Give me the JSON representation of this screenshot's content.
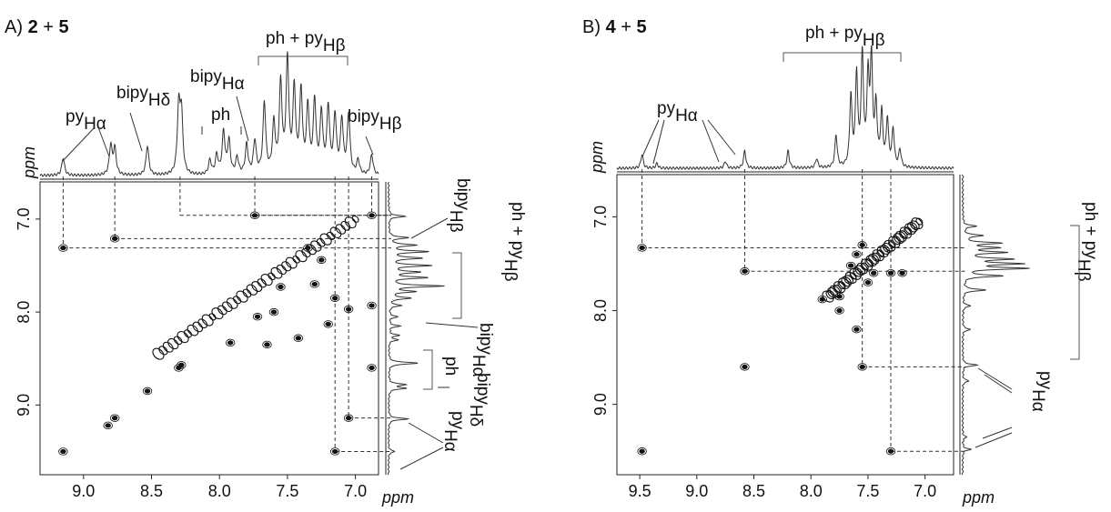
{
  "chart_data": [
    {
      "type": "2D NMR (COSY) contour plot",
      "panel_label": "A)",
      "title_parts": [
        "2",
        " + ",
        "5"
      ],
      "xlabel": "ppm",
      "ylabel": "ppm",
      "xlim": [
        9.32,
        6.83
      ],
      "ylim": [
        6.6,
        9.75
      ],
      "x_ticks": [
        "9.0",
        "8.5",
        "8.0",
        "7.5",
        "7.0"
      ],
      "x_tick_values": [
        9.0,
        8.5,
        8.0,
        7.5,
        7.0
      ],
      "y_ticks": [
        "7.0",
        "8.0",
        "9.0"
      ],
      "y_tick_values": [
        7.0,
        8.0,
        9.0
      ],
      "top_spectrum_peaks": [
        {
          "ppm": 9.15,
          "h": 0.15
        },
        {
          "ppm": 8.8,
          "h": 0.25
        },
        {
          "ppm": 8.77,
          "h": 0.22
        },
        {
          "ppm": 8.53,
          "h": 0.25
        },
        {
          "ppm": 8.3,
          "h": 0.55
        },
        {
          "ppm": 8.28,
          "h": 0.5
        },
        {
          "ppm": 8.07,
          "h": 0.12
        },
        {
          "ppm": 8.02,
          "h": 0.16
        },
        {
          "ppm": 7.97,
          "h": 0.36
        },
        {
          "ppm": 7.93,
          "h": 0.28
        },
        {
          "ppm": 7.87,
          "h": 0.14
        },
        {
          "ppm": 7.8,
          "h": 0.25
        },
        {
          "ppm": 7.74,
          "h": 0.28
        },
        {
          "ppm": 7.67,
          "h": 0.6
        },
        {
          "ppm": 7.6,
          "h": 0.42
        },
        {
          "ppm": 7.55,
          "h": 0.75
        },
        {
          "ppm": 7.5,
          "h": 0.95
        },
        {
          "ppm": 7.45,
          "h": 0.7
        },
        {
          "ppm": 7.4,
          "h": 0.68
        },
        {
          "ppm": 7.35,
          "h": 0.55
        },
        {
          "ppm": 7.3,
          "h": 0.6
        },
        {
          "ppm": 7.25,
          "h": 0.5
        },
        {
          "ppm": 7.2,
          "h": 0.55
        },
        {
          "ppm": 7.15,
          "h": 0.48
        },
        {
          "ppm": 7.1,
          "h": 0.45
        },
        {
          "ppm": 7.05,
          "h": 0.5
        },
        {
          "ppm": 6.98,
          "h": 0.12
        },
        {
          "ppm": 6.88,
          "h": 0.17
        }
      ],
      "side_spectrum_peaks": [
        {
          "ppm": 6.97,
          "h": 0.3
        },
        {
          "ppm": 7.2,
          "h": 0.35
        },
        {
          "ppm": 7.28,
          "h": 0.5
        },
        {
          "ppm": 7.35,
          "h": 0.7
        },
        {
          "ppm": 7.42,
          "h": 0.6
        },
        {
          "ppm": 7.5,
          "h": 0.75
        },
        {
          "ppm": 7.57,
          "h": 0.55
        },
        {
          "ppm": 7.63,
          "h": 0.68
        },
        {
          "ppm": 7.72,
          "h": 0.98
        },
        {
          "ppm": 7.78,
          "h": 0.45
        },
        {
          "ppm": 7.85,
          "h": 0.4
        },
        {
          "ppm": 7.93,
          "h": 0.22
        },
        {
          "ppm": 8.05,
          "h": 0.16
        },
        {
          "ppm": 8.15,
          "h": 0.2
        },
        {
          "ppm": 8.25,
          "h": 0.18
        },
        {
          "ppm": 8.3,
          "h": 0.16
        },
        {
          "ppm": 8.55,
          "h": 0.55
        },
        {
          "ppm": 8.78,
          "h": 0.3
        },
        {
          "ppm": 8.82,
          "h": 0.3
        },
        {
          "ppm": 9.15,
          "h": 0.35
        },
        {
          "ppm": 9.5,
          "h": 0.12
        }
      ],
      "cross_peaks": [
        {
          "x": 9.15,
          "y": 9.5
        },
        {
          "x": 8.82,
          "y": 9.22
        },
        {
          "x": 8.77,
          "y": 9.14
        },
        {
          "x": 8.53,
          "y": 8.85
        },
        {
          "x": 8.3,
          "y": 8.6
        },
        {
          "x": 8.28,
          "y": 8.57
        },
        {
          "x": 9.15,
          "y": 7.31
        },
        {
          "x": 8.77,
          "y": 7.21
        },
        {
          "x": 7.74,
          "y": 6.96
        },
        {
          "x": 7.35,
          "y": 7.31
        },
        {
          "x": 7.25,
          "y": 7.44
        },
        {
          "x": 7.55,
          "y": 7.73
        },
        {
          "x": 7.3,
          "y": 7.7
        },
        {
          "x": 7.15,
          "y": 7.85
        },
        {
          "x": 7.05,
          "y": 7.97
        },
        {
          "x": 6.88,
          "y": 7.93
        },
        {
          "x": 7.6,
          "y": 8.0
        },
        {
          "x": 7.2,
          "y": 8.13
        },
        {
          "x": 6.88,
          "y": 6.96
        },
        {
          "x": 7.05,
          "y": 9.14
        },
        {
          "x": 7.15,
          "y": 9.5
        },
        {
          "x": 6.88,
          "y": 8.6
        },
        {
          "x": 7.92,
          "y": 8.33
        },
        {
          "x": 7.65,
          "y": 8.35
        },
        {
          "x": 7.42,
          "y": 8.28
        },
        {
          "x": 7.72,
          "y": 8.05
        }
      ],
      "diagonal_range": [
        7.0,
        8.45
      ],
      "connectors": [
        {
          "x": 9.15,
          "y": 7.31
        },
        {
          "x": 8.77,
          "y": 7.21
        },
        {
          "x": 8.29,
          "y": 6.96
        },
        {
          "x": 7.74,
          "y": 6.96
        },
        {
          "x": 7.15,
          "y": 9.5
        },
        {
          "x": 7.05,
          "y": 9.14
        },
        {
          "x": 6.88,
          "y": 6.96
        }
      ],
      "annotations_top": [
        {
          "main": "py",
          "sub": "Hα"
        },
        {
          "main": "bipy",
          "sub": "Hδ"
        },
        {
          "main": "ph",
          "sub": ""
        },
        {
          "main": "bipy",
          "sub": "Hα"
        },
        {
          "main": "ph + py",
          "sub": "Hβ"
        },
        {
          "main": "bipy",
          "sub": "Hβ"
        }
      ],
      "annotations_side": [
        {
          "main": "bipy",
          "sub": "Hβ"
        },
        {
          "main": "ph + py",
          "sub": "Hβ"
        },
        {
          "main": "bipy",
          "sub": "Hα"
        },
        {
          "main": "ph",
          "sub": ""
        },
        {
          "main": "bipy",
          "sub": "Hδ"
        },
        {
          "main": "py",
          "sub": "Hα"
        }
      ]
    },
    {
      "type": "2D NMR (COSY) contour plot",
      "panel_label": "B)",
      "title_parts": [
        "4",
        " + ",
        "5"
      ],
      "xlabel": "ppm",
      "ylabel": "ppm",
      "xlim": [
        9.7,
        6.75
      ],
      "ylim": [
        6.55,
        9.75
      ],
      "x_ticks": [
        "9.5",
        "9.0",
        "8.5",
        "8.0",
        "7.5",
        "7.0"
      ],
      "x_tick_values": [
        9.5,
        9.0,
        8.5,
        8.0,
        7.5,
        7.0
      ],
      "y_ticks": [
        "7.0",
        "8.0",
        "9.0"
      ],
      "y_tick_values": [
        7.0,
        8.0,
        9.0
      ],
      "top_spectrum_peaks": [
        {
          "ppm": 9.48,
          "h": 0.12
        },
        {
          "ppm": 9.35,
          "h": 0.04
        },
        {
          "ppm": 8.75,
          "h": 0.06
        },
        {
          "ppm": 8.58,
          "h": 0.15
        },
        {
          "ppm": 8.2,
          "h": 0.15
        },
        {
          "ppm": 7.95,
          "h": 0.08
        },
        {
          "ppm": 7.78,
          "h": 0.28
        },
        {
          "ppm": 7.65,
          "h": 0.6
        },
        {
          "ppm": 7.6,
          "h": 0.78
        },
        {
          "ppm": 7.55,
          "h": 0.95
        },
        {
          "ppm": 7.5,
          "h": 0.72
        },
        {
          "ppm": 7.47,
          "h": 0.9
        },
        {
          "ppm": 7.43,
          "h": 0.5
        },
        {
          "ppm": 7.38,
          "h": 0.45
        },
        {
          "ppm": 7.33,
          "h": 0.4
        },
        {
          "ppm": 7.28,
          "h": 0.32
        },
        {
          "ppm": 7.22,
          "h": 0.15
        }
      ],
      "side_spectrum_peaks": [
        {
          "ppm": 7.1,
          "h": 0.2
        },
        {
          "ppm": 7.2,
          "h": 0.3
        },
        {
          "ppm": 7.28,
          "h": 0.55
        },
        {
          "ppm": 7.33,
          "h": 0.5
        },
        {
          "ppm": 7.38,
          "h": 0.62
        },
        {
          "ppm": 7.45,
          "h": 0.72
        },
        {
          "ppm": 7.5,
          "h": 0.85
        },
        {
          "ppm": 7.55,
          "h": 0.95
        },
        {
          "ppm": 7.63,
          "h": 0.6
        },
        {
          "ppm": 7.78,
          "h": 0.35
        },
        {
          "ppm": 7.95,
          "h": 0.12
        },
        {
          "ppm": 8.2,
          "h": 0.12
        },
        {
          "ppm": 8.58,
          "h": 0.22
        },
        {
          "ppm": 8.75,
          "h": 0.1
        },
        {
          "ppm": 9.35,
          "h": 0.06
        },
        {
          "ppm": 9.48,
          "h": 0.12
        }
      ],
      "cross_peaks": [
        {
          "x": 9.48,
          "y": 7.33
        },
        {
          "x": 8.58,
          "y": 7.58
        },
        {
          "x": 8.58,
          "y": 8.6
        },
        {
          "x": 9.48,
          "y": 9.5
        },
        {
          "x": 7.55,
          "y": 8.6
        },
        {
          "x": 7.3,
          "y": 9.5
        },
        {
          "x": 7.55,
          "y": 7.3
        },
        {
          "x": 7.6,
          "y": 7.4
        },
        {
          "x": 7.65,
          "y": 7.52
        },
        {
          "x": 7.45,
          "y": 7.6
        },
        {
          "x": 7.5,
          "y": 7.7
        },
        {
          "x": 7.3,
          "y": 7.6
        },
        {
          "x": 7.2,
          "y": 7.6
        },
        {
          "x": 7.75,
          "y": 7.85
        },
        {
          "x": 7.9,
          "y": 7.88
        },
        {
          "x": 7.6,
          "y": 8.2
        },
        {
          "x": 7.75,
          "y": 8.0
        }
      ],
      "diagonal_range": [
        7.05,
        7.85
      ],
      "connectors": [
        {
          "x": 9.48,
          "y": 7.33
        },
        {
          "x": 8.58,
          "y": 7.58
        },
        {
          "x": 7.55,
          "y": 8.6
        },
        {
          "x": 7.3,
          "y": 9.5
        }
      ],
      "annotations_top": [
        {
          "main": "py",
          "sub": "Hα"
        },
        {
          "main": "ph + py",
          "sub": "Hβ"
        }
      ],
      "annotations_side": [
        {
          "main": "ph + py",
          "sub": "Hβ"
        },
        {
          "main": "py",
          "sub": "Hα"
        }
      ]
    }
  ]
}
